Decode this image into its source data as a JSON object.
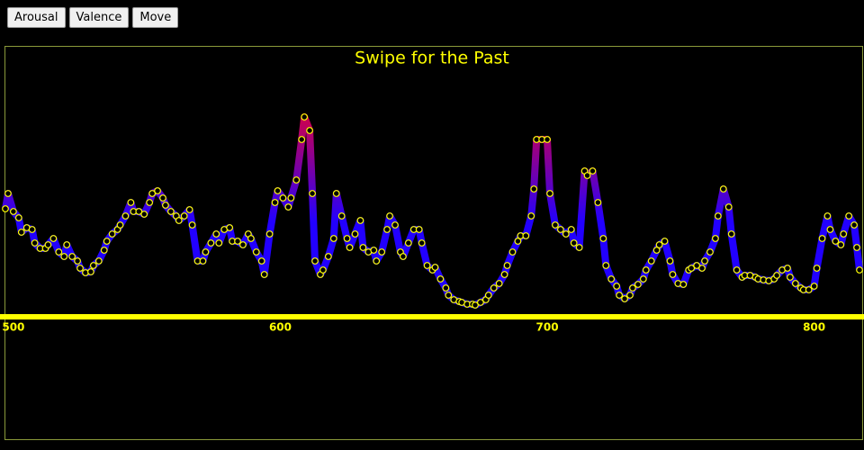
{
  "buttons": [
    "Arousal",
    "Valence",
    "Move"
  ],
  "chart_data": {
    "type": "line",
    "title": "Swipe for the Past",
    "x": [
      497,
      498,
      500,
      502,
      503,
      505,
      507,
      508,
      510,
      512,
      513,
      515,
      517,
      519,
      520,
      522,
      524,
      525,
      527,
      529,
      530,
      532,
      534,
      535,
      537,
      539,
      540,
      542,
      544,
      545,
      547,
      549,
      551,
      552,
      554,
      556,
      557,
      559,
      561,
      562,
      564,
      566,
      567,
      569,
      571,
      572,
      574,
      576,
      577,
      579,
      581,
      582,
      584,
      586,
      588,
      589,
      591,
      593,
      594,
      596,
      598,
      599,
      601,
      603,
      604,
      606,
      608,
      609,
      611,
      612,
      613,
      615,
      616,
      618,
      620,
      621,
      623,
      625,
      626,
      628,
      630,
      631,
      633,
      635,
      636,
      638,
      640,
      641,
      643,
      645,
      646,
      648,
      650,
      652,
      653,
      655,
      657,
      658,
      660,
      662,
      663,
      665,
      667,
      668,
      670,
      672,
      673,
      675,
      677,
      678,
      680,
      682,
      684,
      685,
      687,
      689,
      690,
      692,
      694,
      695,
      696,
      698,
      700,
      701,
      703,
      705,
      707,
      709,
      710,
      712,
      714,
      715,
      717,
      719,
      721,
      722,
      724,
      726,
      727,
      729,
      731,
      732,
      734,
      736,
      737,
      739,
      741,
      742,
      744,
      746,
      747,
      749,
      751,
      753,
      754,
      756,
      758,
      759,
      761,
      763,
      764,
      766,
      768,
      769,
      771,
      773,
      774,
      776,
      778,
      779,
      781,
      783,
      785,
      786,
      788,
      790,
      791,
      793,
      795,
      796,
      798,
      800,
      801,
      803,
      805,
      806,
      808,
      810,
      811,
      813,
      815,
      816,
      817
    ],
    "values": [
      120,
      137,
      117,
      110,
      94,
      99,
      97,
      82,
      76,
      76,
      80,
      87,
      72,
      67,
      80,
      67,
      62,
      54,
      49,
      50,
      57,
      62,
      74,
      84,
      92,
      97,
      102,
      112,
      127,
      117,
      117,
      114,
      127,
      137,
      140,
      132,
      124,
      117,
      112,
      107,
      112,
      119,
      102,
      62,
      62,
      72,
      82,
      92,
      82,
      97,
      99,
      84,
      84,
      80,
      92,
      87,
      72,
      62,
      47,
      92,
      127,
      140,
      132,
      122,
      132,
      152,
      197,
      222,
      207,
      137,
      62,
      47,
      52,
      67,
      87,
      137,
      112,
      87,
      77,
      92,
      107,
      77,
      72,
      74,
      62,
      72,
      97,
      112,
      102,
      72,
      67,
      82,
      97,
      97,
      82,
      57,
      52,
      55,
      42,
      32,
      24,
      19,
      17,
      16,
      14,
      14,
      13,
      16,
      19,
      24,
      32,
      37,
      47,
      57,
      72,
      84,
      90,
      90,
      112,
      142,
      197,
      197,
      197,
      137,
      102,
      97,
      92,
      97,
      82,
      77,
      162,
      157,
      162,
      127,
      87,
      57,
      42,
      34,
      24,
      20,
      24,
      32,
      36,
      42,
      52,
      62,
      74,
      80,
      84,
      62,
      47,
      37,
      36,
      52,
      54,
      57,
      54,
      62,
      72,
      87,
      112,
      142,
      122,
      92,
      52,
      44,
      46,
      46,
      44,
      42,
      41,
      40,
      42,
      46,
      52,
      54,
      44,
      37,
      32,
      30,
      30,
      34,
      54,
      87,
      112,
      97,
      84,
      80,
      92,
      112,
      102,
      77,
      52
    ],
    "xlim": [
      497,
      818
    ],
    "xticks": [
      500,
      600,
      700,
      800
    ],
    "ylim": [
      0,
      300
    ],
    "color": "#ffff00",
    "gradient": [
      "#2200ff",
      "#d0004a"
    ],
    "frame_color": "#8a9a3a"
  }
}
